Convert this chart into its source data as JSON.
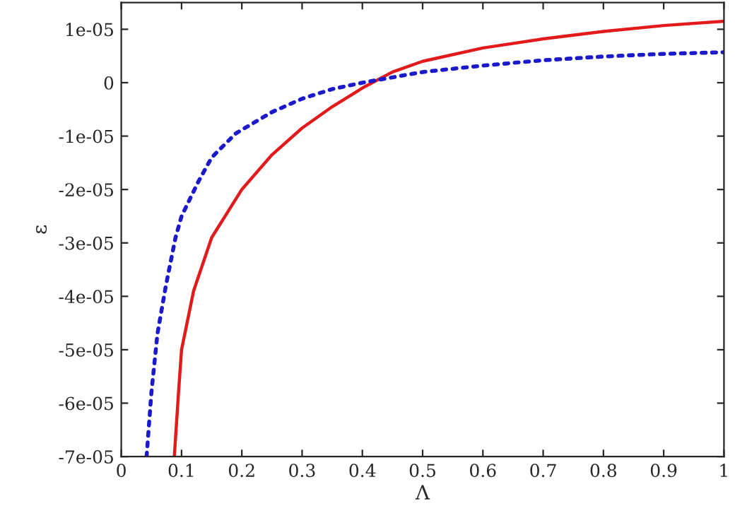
{
  "chart_data": {
    "type": "line",
    "xlabel": "Λ",
    "ylabel": "ε",
    "grid": false,
    "legend": false,
    "xlim": [
      0,
      1
    ],
    "xticks": [
      0,
      0.1,
      0.2,
      0.3,
      0.4,
      0.5,
      0.6,
      0.7,
      0.8,
      0.9,
      1
    ],
    "ylim": [
      -7e-05,
      1.5e-05
    ],
    "yticks": [
      {
        "value": 1e-05,
        "label": "1e-05"
      },
      0,
      {
        "value": -1e-05,
        "label": "-1e-05"
      },
      {
        "value": -2e-05,
        "label": "-2e-05"
      },
      {
        "value": -3e-05,
        "label": "-3e-05"
      },
      {
        "value": -4e-05,
        "label": "-4e-05"
      },
      {
        "value": -5e-05,
        "label": "-5e-05"
      },
      {
        "value": -6e-05,
        "label": "-6e-05"
      },
      {
        "value": -7e-05,
        "label": "-7e-05"
      }
    ],
    "series": [
      {
        "color": "#e31a1c",
        "line_style": "solid",
        "x": [
          0.088,
          0.095,
          0.1,
          0.12,
          0.15,
          0.2,
          0.25,
          0.3,
          0.35,
          0.4,
          0.45,
          0.5,
          0.6,
          0.7,
          0.8,
          0.9,
          1.0
        ],
        "values": [
          -7e-05,
          -5.8e-05,
          -5e-05,
          -3.9e-05,
          -2.9e-05,
          -2e-05,
          -1.35e-05,
          -8.5e-06,
          -4.5e-06,
          -1e-06,
          2e-06,
          4e-06,
          6.5e-06,
          8.2e-06,
          9.6e-06,
          1.07e-05,
          1.15e-05
        ]
      },
      {
        "color": "#1a1acc",
        "line_style": "dotted",
        "x": [
          0.042,
          0.05,
          0.06,
          0.074,
          0.09,
          0.1,
          0.128,
          0.15,
          0.19,
          0.25,
          0.3,
          0.35,
          0.4,
          0.5,
          0.6,
          0.7,
          0.8,
          0.9,
          1.0
        ],
        "values": [
          -7e-05,
          -5.8e-05,
          -4.7e-05,
          -3.8e-05,
          -2.9e-05,
          -2.5e-05,
          -1.85e-05,
          -1.4e-05,
          -9.5e-06,
          -5.5e-06,
          -3e-06,
          -1.2e-06,
          0.0,
          2e-06,
          3.2e-06,
          4.2e-06,
          4.9e-06,
          5.4e-06,
          5.7e-06
        ]
      }
    ]
  }
}
